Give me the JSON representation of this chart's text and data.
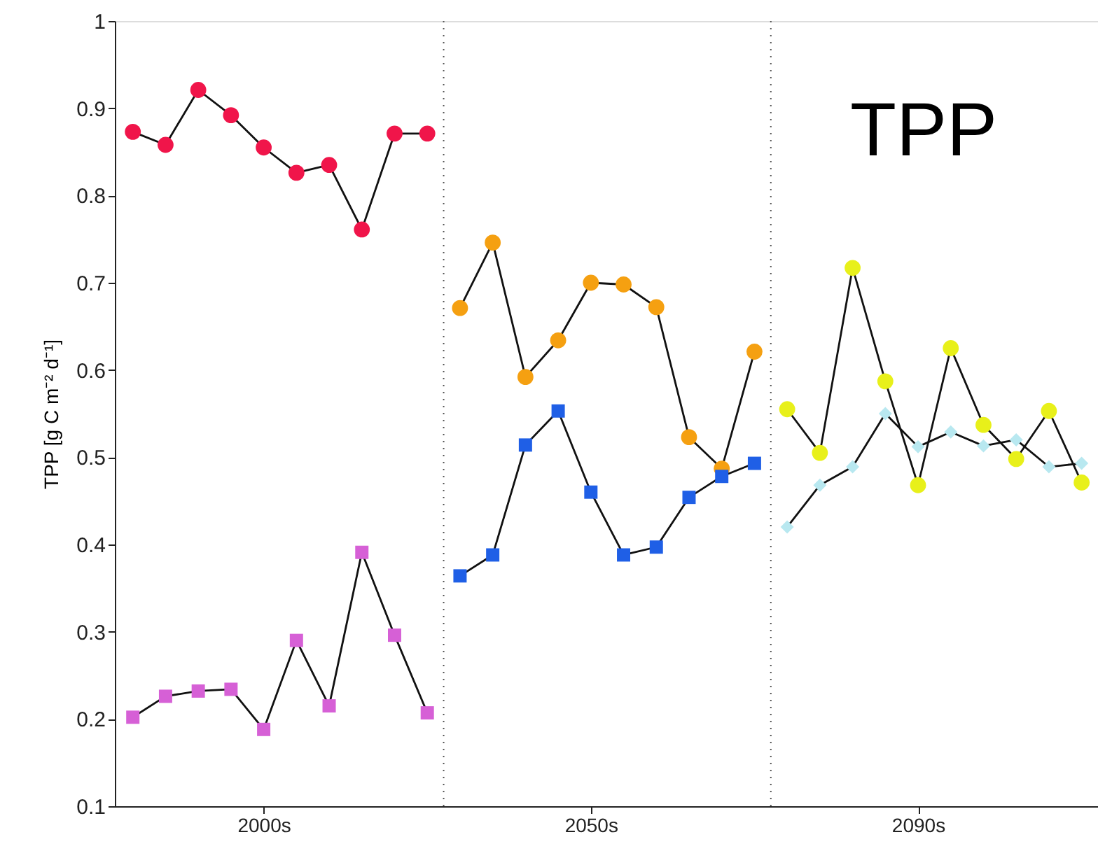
{
  "chart_data": {
    "type": "line",
    "ylabel": "TPP [g C m⁻² d⁻¹]",
    "annotations": [
      "TPP"
    ],
    "categories": [
      null,
      null,
      null,
      null,
      "2000s",
      null,
      null,
      null,
      null,
      null,
      null,
      null,
      null,
      null,
      "2050s",
      null,
      null,
      null,
      null,
      null,
      null,
      null,
      null,
      null,
      "2090s",
      null,
      null,
      null,
      null,
      null
    ],
    "ylim": [
      0.1,
      1
    ],
    "yticks": [
      0.1,
      0.2,
      0.3,
      0.4,
      0.5,
      0.6,
      0.7,
      0.8,
      0.9,
      1
    ],
    "grid": false,
    "line_style": "solid",
    "series": [
      {
        "color": "#f0154a",
        "marker": "circle",
        "values": [
          0.873,
          0.858,
          0.921,
          0.892,
          0.855,
          0.826,
          0.835,
          0.761,
          0.871,
          0.871,
          null,
          null,
          null,
          null,
          null,
          null,
          null,
          null,
          null,
          null,
          null,
          null,
          null,
          null,
          null,
          null,
          null,
          null,
          null,
          null
        ]
      },
      {
        "color": "#d660d6",
        "marker": "square",
        "values": [
          0.202,
          0.226,
          0.232,
          0.234,
          0.188,
          0.29,
          0.215,
          0.391,
          0.296,
          0.207,
          null,
          null,
          null,
          null,
          null,
          null,
          null,
          null,
          null,
          null,
          null,
          null,
          null,
          null,
          null,
          null,
          null,
          null,
          null,
          null
        ]
      },
      {
        "color": "#f5a011",
        "marker": "circle",
        "values": [
          null,
          null,
          null,
          null,
          null,
          null,
          null,
          null,
          null,
          null,
          0.671,
          0.746,
          0.592,
          0.634,
          0.7,
          0.698,
          0.672,
          0.523,
          0.487,
          0.621,
          null,
          null,
          null,
          null,
          null,
          null,
          null,
          null,
          null,
          null
        ]
      },
      {
        "color": "#1f5fe6",
        "marker": "square",
        "values": [
          null,
          null,
          null,
          null,
          null,
          null,
          null,
          null,
          null,
          null,
          0.364,
          0.388,
          0.514,
          0.553,
          0.46,
          0.388,
          0.397,
          0.454,
          0.478,
          0.493,
          null,
          null,
          null,
          null,
          null,
          null,
          null,
          null,
          null,
          null
        ]
      },
      {
        "color": "#b8e8f0",
        "marker": "diamond",
        "values": [
          null,
          null,
          null,
          null,
          null,
          null,
          null,
          null,
          null,
          null,
          null,
          null,
          null,
          null,
          null,
          null,
          null,
          null,
          null,
          null,
          0.42,
          0.468,
          0.489,
          0.55,
          0.512,
          0.529,
          0.513,
          0.52,
          0.489,
          0.493
        ]
      },
      {
        "color": "#e8f01a",
        "marker": "circle",
        "values": [
          null,
          null,
          null,
          null,
          null,
          null,
          null,
          null,
          null,
          null,
          null,
          null,
          null,
          null,
          null,
          null,
          null,
          null,
          null,
          null,
          0.555,
          0.505,
          0.717,
          0.587,
          0.468,
          0.625,
          0.537,
          0.498,
          0.553,
          0.471
        ]
      }
    ]
  }
}
